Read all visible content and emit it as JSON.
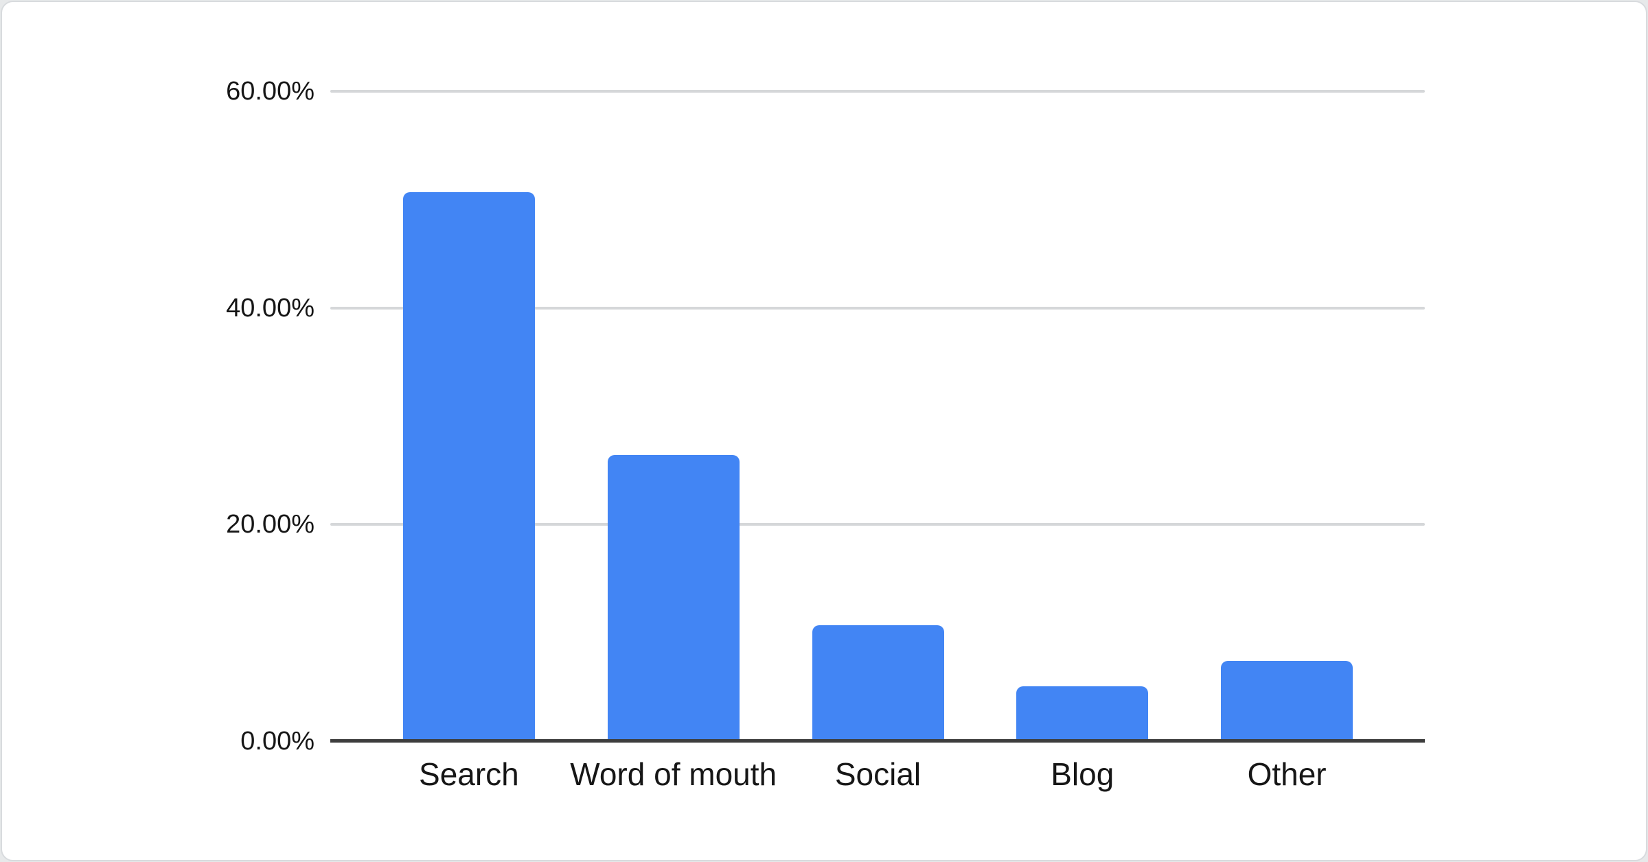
{
  "chart_data": {
    "type": "bar",
    "title": "",
    "xlabel": "",
    "ylabel": "",
    "categories": [
      "Search",
      "Word of mouth",
      "Social",
      "Blog",
      "Other"
    ],
    "values": [
      50.7,
      26.4,
      10.7,
      5.1,
      7.4
    ],
    "value_unit": "%",
    "y_ticks": [
      {
        "label": "0.00%",
        "value": 0
      },
      {
        "label": "20.00%",
        "value": 20
      },
      {
        "label": "40.00%",
        "value": 40
      },
      {
        "label": "60.00%",
        "value": 60
      }
    ],
    "ylim": [
      0,
      60
    ],
    "grid": "horizontal",
    "legend": "none",
    "colors": {
      "bar": "#4285f4",
      "gridline": "#d5d7d9",
      "axis_line": "#3d3d3d",
      "tick_label": "#161616",
      "chart_background": "#ffffff",
      "page_background": "#e7e9ea",
      "card_border": "#d8dbde"
    }
  }
}
